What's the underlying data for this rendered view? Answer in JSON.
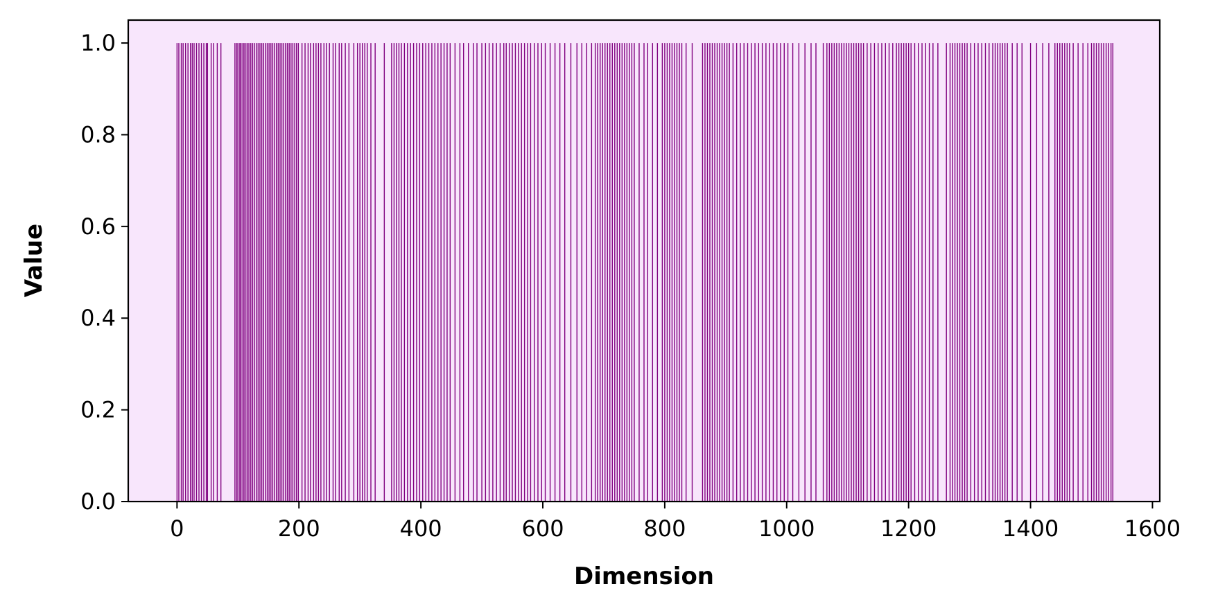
{
  "chart_data": {
    "type": "bar",
    "title": "",
    "xlabel": "Dimension",
    "ylabel": "Value",
    "xlim": [
      -80,
      1612
    ],
    "ylim": [
      0,
      1.05
    ],
    "xticks": [
      0,
      200,
      400,
      600,
      800,
      1000,
      1200,
      1400,
      1600
    ],
    "xtick_labels": [
      "0",
      "200",
      "400",
      "600",
      "800",
      "1000",
      "1200",
      "1400",
      "1600"
    ],
    "yticks": [
      0.0,
      0.2,
      0.4,
      0.6,
      0.8,
      1.0
    ],
    "ytick_labels": [
      "0.0",
      "0.2",
      "0.4",
      "0.6",
      "0.8",
      "1.0"
    ],
    "bar_color": "#800080",
    "background_color": "#f8e6fc",
    "grid": false,
    "legend": "none",
    "series": [
      {
        "values": 1,
        "x": [
          0,
          3,
          7,
          10,
          14,
          18,
          22,
          25,
          28,
          32,
          36,
          40,
          44,
          48,
          50,
          56,
          60,
          66,
          72,
          95,
          98,
          100,
          103,
          105,
          108,
          110,
          113,
          116,
          118,
          121,
          124,
          127,
          130,
          133,
          136,
          139,
          142,
          145,
          148,
          151,
          154,
          157,
          160,
          163,
          166,
          169,
          172,
          175,
          178,
          181,
          184,
          187,
          190,
          193,
          196,
          199,
          205,
          210,
          215,
          219,
          224,
          228,
          232,
          236,
          241,
          245,
          250,
          256,
          260,
          266,
          270,
          276,
          282,
          290,
          296,
          300,
          304,
          308,
          312,
          318,
          325,
          340,
          352,
          356,
          360,
          364,
          368,
          373,
          378,
          383,
          388,
          393,
          398,
          403,
          408,
          413,
          418,
          423,
          428,
          433,
          438,
          443,
          448,
          456,
          464,
          470,
          478,
          486,
          492,
          500,
          506,
          512,
          518,
          524,
          530,
          536,
          540,
          545,
          550,
          555,
          560,
          565,
          570,
          575,
          580,
          586,
          592,
          598,
          604,
          612,
          620,
          628,
          636,
          646,
          656,
          664,
          672,
          680,
          686,
          690,
          694,
          698,
          702,
          706,
          710,
          714,
          718,
          722,
          726,
          730,
          734,
          738,
          742,
          746,
          750,
          758,
          766,
          772,
          780,
          788,
          796,
          800,
          804,
          808,
          812,
          816,
          820,
          824,
          828,
          835,
          845,
          862,
          866,
          870,
          874,
          878,
          882,
          886,
          890,
          894,
          898,
          902,
          906,
          912,
          918,
          924,
          930,
          936,
          942,
          948,
          954,
          960,
          966,
          972,
          978,
          984,
          990,
          996,
          1002,
          1010,
          1020,
          1030,
          1040,
          1048,
          1060,
          1066,
          1070,
          1074,
          1078,
          1082,
          1086,
          1090,
          1094,
          1098,
          1102,
          1106,
          1110,
          1114,
          1118,
          1122,
          1126,
          1132,
          1138,
          1144,
          1150,
          1156,
          1162,
          1168,
          1174,
          1180,
          1184,
          1188,
          1192,
          1196,
          1200,
          1204,
          1210,
          1216,
          1222,
          1228,
          1234,
          1240,
          1248,
          1262,
          1268,
          1272,
          1276,
          1280,
          1284,
          1288,
          1292,
          1296,
          1302,
          1308,
          1314,
          1320,
          1326,
          1332,
          1338,
          1342,
          1346,
          1350,
          1354,
          1358,
          1362,
          1370,
          1378,
          1386,
          1400,
          1410,
          1420,
          1430,
          1440,
          1444,
          1448,
          1452,
          1456,
          1460,
          1464,
          1470,
          1478,
          1486,
          1494,
          1500,
          1504,
          1508,
          1512,
          1516,
          1520,
          1524,
          1528,
          1532,
          1535
        ]
      }
    ]
  }
}
